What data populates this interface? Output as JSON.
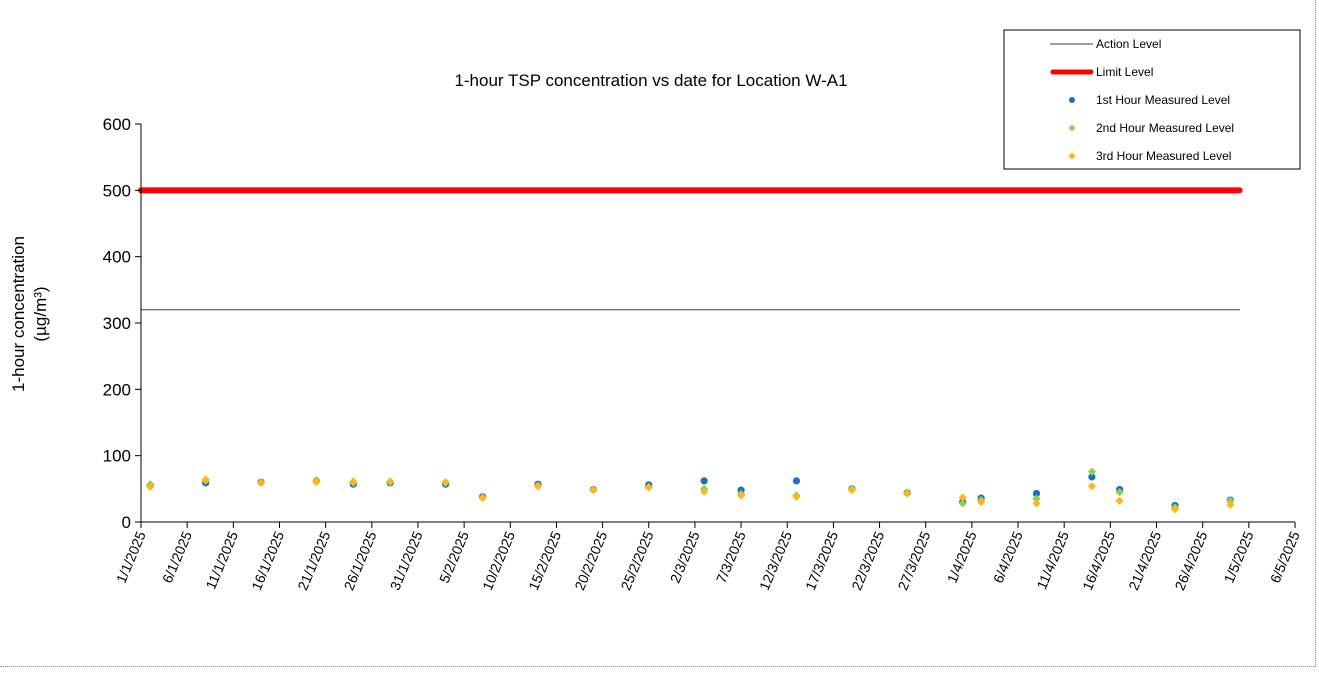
{
  "chart_data": {
    "type": "scatter",
    "title": "1-hour TSP concentration vs date for Location W-A1",
    "ylabel": "1-hour concentration",
    "ylabel_unit": "(µg/m³)",
    "xlabel": "",
    "ylim": [
      0,
      600
    ],
    "yticks": [
      0,
      100,
      200,
      300,
      400,
      500,
      600
    ],
    "xlim": [
      "1/1/2025",
      "6/5/2025"
    ],
    "xticks": [
      "1/1/2025",
      "6/1/2025",
      "11/1/2025",
      "16/1/2025",
      "21/1/2025",
      "26/1/2025",
      "31/1/2025",
      "5/2/2025",
      "10/2/2025",
      "15/2/2025",
      "20/2/2025",
      "25/2/2025",
      "2/3/2025",
      "7/3/2025",
      "12/3/2025",
      "17/3/2025",
      "22/3/2025",
      "27/3/2025",
      "1/4/2025",
      "6/4/2025",
      "11/4/2025",
      "16/4/2025",
      "21/4/2025",
      "26/4/2025",
      "1/5/2025",
      "6/5/2025"
    ],
    "grid": false,
    "legend_position": "top-right",
    "reference_lines": [
      {
        "name": "Action Level",
        "value": 320,
        "from": "1/1/2025",
        "to": "30/4/2025",
        "color": "#404040"
      },
      {
        "name": "Limit Level",
        "value": 500,
        "from": "1/1/2025",
        "to": "30/4/2025",
        "color": "#ff0000"
      }
    ],
    "series": [
      {
        "name": "1st Hour Measured Level",
        "color": "#1f6fc1",
        "marker": "circle",
        "x": [
          "2/1/2025",
          "8/1/2025",
          "14/1/2025",
          "20/1/2025",
          "24/1/2025",
          "28/1/2025",
          "3/2/2025",
          "7/2/2025",
          "13/2/2025",
          "19/2/2025",
          "25/2/2025",
          "3/3/2025",
          "7/3/2025",
          "13/3/2025",
          "19/3/2025",
          "25/3/2025",
          "31/3/2025",
          "2/4/2025",
          "8/4/2025",
          "14/4/2025",
          "17/4/2025",
          "23/4/2025",
          "29/4/2025"
        ],
        "y": [
          55,
          59,
          60,
          62,
          57,
          59,
          57,
          38,
          57,
          49,
          56,
          62,
          48,
          62,
          50,
          44,
          30,
          36,
          43,
          68,
          49,
          25,
          33
        ]
      },
      {
        "name": "2nd Hour Measured Level",
        "color": "#8fce4f",
        "marker": "diamond",
        "x": [
          "2/1/2025",
          "8/1/2025",
          "14/1/2025",
          "20/1/2025",
          "24/1/2025",
          "28/1/2025",
          "3/2/2025",
          "7/2/2025",
          "13/2/2025",
          "19/2/2025",
          "25/2/2025",
          "3/3/2025",
          "7/3/2025",
          "13/3/2025",
          "19/3/2025",
          "25/3/2025",
          "31/3/2025",
          "2/4/2025",
          "8/4/2025",
          "14/4/2025",
          "17/4/2025",
          "23/4/2025",
          "29/4/2025"
        ],
        "y": [
          57,
          62,
          60,
          63,
          59,
          60,
          59,
          37,
          55,
          49,
          53,
          50,
          42,
          40,
          50,
          44,
          28,
          33,
          35,
          76,
          45,
          22,
          32
        ]
      },
      {
        "name": "3rd Hour Measured Level",
        "color": "#ffb619",
        "marker": "diamond",
        "x": [
          "2/1/2025",
          "8/1/2025",
          "14/1/2025",
          "20/1/2025",
          "24/1/2025",
          "28/1/2025",
          "3/2/2025",
          "7/2/2025",
          "13/2/2025",
          "19/2/2025",
          "25/2/2025",
          "3/3/2025",
          "7/3/2025",
          "13/3/2025",
          "19/3/2025",
          "25/3/2025",
          "31/3/2025",
          "2/4/2025",
          "8/4/2025",
          "14/4/2025",
          "17/4/2025",
          "23/4/2025",
          "29/4/2025"
        ],
        "y": [
          53,
          64,
          59,
          60,
          61,
          61,
          60,
          36,
          54,
          48,
          52,
          46,
          40,
          38,
          48,
          43,
          37,
          30,
          28,
          54,
          32,
          19,
          26
        ]
      }
    ]
  }
}
